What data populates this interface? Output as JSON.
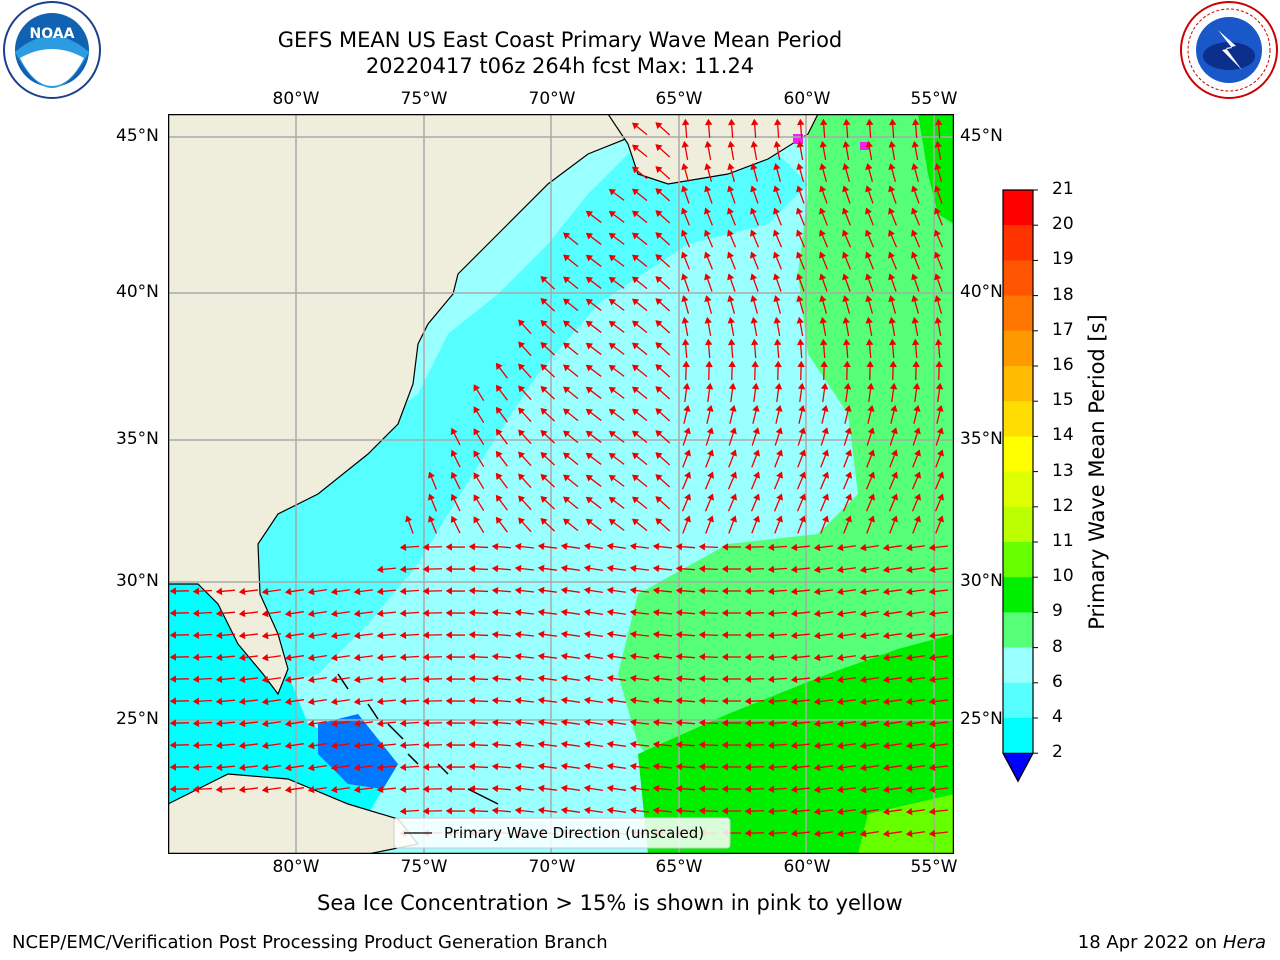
{
  "title": {
    "line1": "GEFS MEAN US East Coast Primary Wave Mean Period",
    "line2": "20220417 t06z 264h fcst   Max: 11.24"
  },
  "axes": {
    "lon_labels": [
      "80°W",
      "75°W",
      "70°W",
      "65°W",
      "60°W",
      "55°W"
    ],
    "lat_labels": [
      "45°N",
      "40°N",
      "35°N",
      "30°N",
      "25°N"
    ]
  },
  "legend": {
    "label": "Primary Wave Direction (unscaled)"
  },
  "colorbar": {
    "label": "Primary Wave Mean Period [s]",
    "ticks": [
      "21",
      "20",
      "19",
      "18",
      "17",
      "16",
      "15",
      "14",
      "13",
      "12",
      "11",
      "10",
      "9",
      "8",
      "6",
      "4",
      "2"
    ],
    "colors": [
      "#ff0000",
      "#ff3300",
      "#ff5500",
      "#ff7700",
      "#ff9900",
      "#ffbb00",
      "#ffdd00",
      "#ffff00",
      "#ddff00",
      "#bbff00",
      "#66ff00",
      "#00ee00",
      "#55ff77",
      "#99ffff",
      "#55ffff",
      "#00ffff",
      "#0077ff"
    ],
    "min_triangle_color": "#0000ff"
  },
  "notes": {
    "sea_ice": "Sea Ice Concentration > 15% is shown in pink to yellow"
  },
  "footer": {
    "left": "NCEP/EMC/Verification Post Processing Product Generation Branch",
    "right_date": "18 Apr 2022 on ",
    "right_machine": "Hera"
  },
  "logos": {
    "left": "NOAA",
    "right": "NATIONAL WEATHER SERVICE"
  },
  "colors": {
    "land": "#efeddc",
    "arrow": "#ee0000",
    "grid": "#aaaaaa"
  }
}
